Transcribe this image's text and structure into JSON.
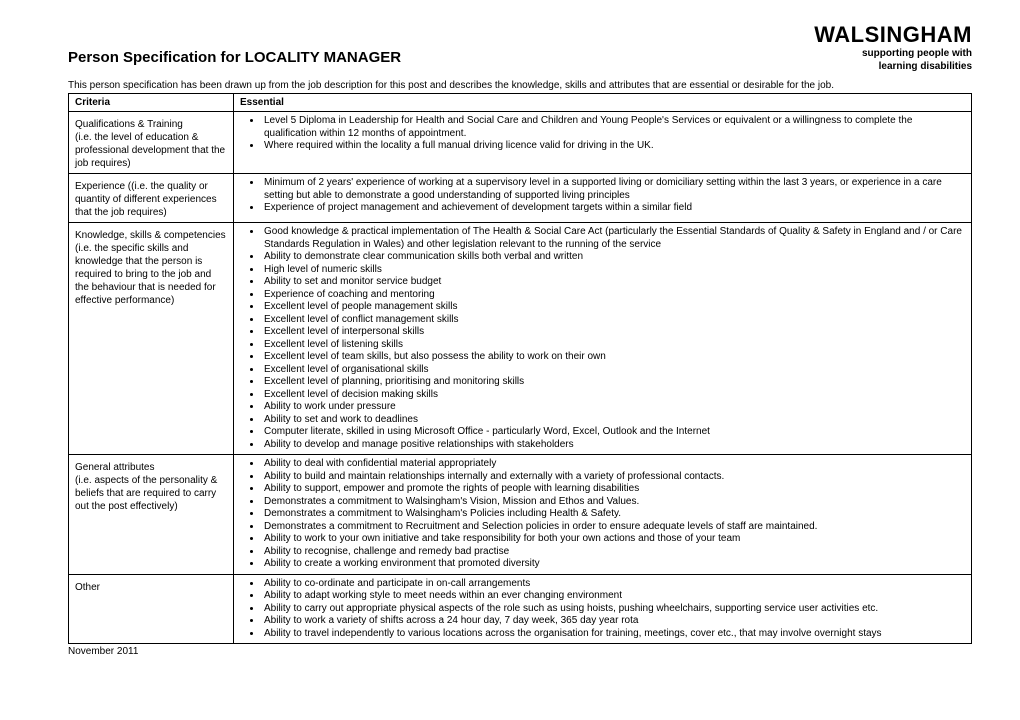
{
  "logo": {
    "name": "WALSINGHAM",
    "tag1": "supporting people with",
    "tag2": "learning disabilities"
  },
  "title": "Person Specification for LOCALITY MANAGER",
  "intro": "This person specification has been drawn up from the job description for this post and describes the knowledge, skills and attributes that are essential or desirable for the job.",
  "head": {
    "c1": "Criteria",
    "c2": "Essential"
  },
  "rows": [
    {
      "criteria": "Qualifications & Training\n(i.e. the level of education & professional development that the job requires)",
      "items": [
        "Level 5 Diploma in Leadership for Health and Social Care and Children and Young People's Services or equivalent or a willingness to complete the qualification within 12 months of appointment.",
        "Where required within the locality a full manual driving licence valid for driving in the UK."
      ]
    },
    {
      "criteria": "Experience  ((i.e. the quality or quantity of different experiences that the job requires)",
      "items": [
        "Minimum of 2 years' experience of working at a supervisory level in a supported living or domiciliary setting within the last 3 years, or experience in a care setting but able to demonstrate a good understanding of supported living principles",
        "Experience of project management and achievement of development targets within a similar field"
      ]
    },
    {
      "criteria": "Knowledge, skills & competencies (i.e. the specific skills and knowledge that the person is required to bring to the job and the behaviour that is needed for effective performance)",
      "items": [
        "Good knowledge & practical implementation of The Health & Social Care Act  (particularly the Essential Standards of Quality & Safety in England and  / or Care Standards Regulation in Wales) and other legislation relevant to the running of the service",
        "Ability to demonstrate clear communication skills both verbal and written",
        "High level of numeric skills",
        "Ability to set and monitor service budget",
        "Experience of coaching and mentoring",
        "Excellent level of people management skills",
        "Excellent level of conflict management skills",
        "Excellent level of interpersonal skills",
        "Excellent level of listening skills",
        "Excellent level of team skills, but also possess the ability to work on their own",
        "Excellent level of organisational skills",
        "Excellent level of planning, prioritising and monitoring skills",
        "Excellent level of decision making skills",
        "Ability to work under pressure",
        "Ability to set and work to deadlines",
        "Computer literate, skilled in using Microsoft Office  - particularly Word, Excel, Outlook and the Internet",
        "Ability to develop and manage positive relationships with stakeholders"
      ]
    },
    {
      "criteria": "General attributes\n(i.e. aspects of the personality & beliefs that are required to carry out the post effectively)",
      "items": [
        "Ability to deal with confidential material appropriately",
        "Ability to build and maintain relationships internally and externally with a variety of professional contacts.",
        "Ability to support, empower and promote the rights of people with learning disabilities",
        "Demonstrates a commitment to Walsingham's Vision, Mission and Ethos and Values.",
        "Demonstrates a commitment to Walsingham's Policies including Health & Safety.",
        "Demonstrates a commitment to Recruitment and Selection policies in order to ensure adequate levels of staff are maintained.",
        "Ability to work to your own initiative and take responsibility for both your own actions and those of your team",
        "Ability to recognise, challenge and remedy bad practise",
        "Ability to create a working environment that promoted diversity"
      ]
    },
    {
      "criteria": "Other",
      "items": [
        "Ability to co-ordinate and participate in on-call arrangements",
        "Ability to adapt working style to meet needs within an ever changing environment",
        "Ability to carry out appropriate physical aspects of the role such as using hoists, pushing wheelchairs, supporting service user activities etc.",
        "Ability to work a variety of shifts across a 24 hour day, 7 day week, 365 day year rota",
        "Ability to travel independently to various locations across the organisation for training, meetings, cover etc., that may involve overnight stays"
      ]
    }
  ],
  "footer": "November 2011"
}
